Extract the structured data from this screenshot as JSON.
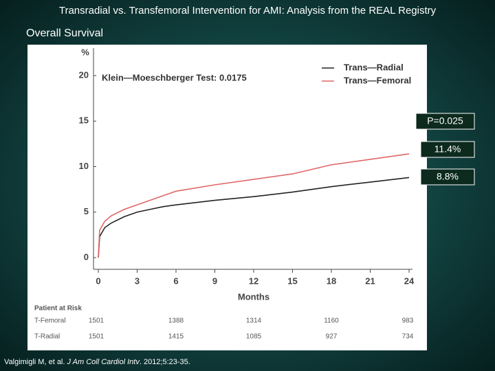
{
  "slide": {
    "title": "Transradial vs. Transfemoral Intervention for AMI: Analysis from the REAL Registry",
    "subtitle": "Overall Survival",
    "citation": [
      "Valgimigli M, et al. ",
      "J Am Coll Cardiol Intv",
      ". 2012;5:23-35."
    ]
  },
  "chart_data": {
    "type": "line",
    "y_label": "%",
    "x_label": "Months",
    "test_label": "Klein—Moeschberger Test: 0.0175",
    "x": [
      0,
      0.1,
      0.5,
      1,
      2,
      3,
      4,
      5,
      6,
      9,
      12,
      15,
      18,
      21,
      24
    ],
    "series": [
      {
        "name": "Trans—Radial",
        "color": "#222222",
        "values": [
          0,
          2.3,
          3.3,
          3.8,
          4.5,
          5.0,
          5.3,
          5.6,
          5.8,
          6.3,
          6.7,
          7.2,
          7.8,
          8.3,
          8.8
        ]
      },
      {
        "name": "Trans—Femoral",
        "color": "#e06666",
        "values": [
          0,
          3.0,
          4.0,
          4.6,
          5.3,
          5.8,
          6.3,
          6.8,
          7.3,
          8.0,
          8.6,
          9.2,
          10.2,
          10.8,
          11.4
        ]
      }
    ],
    "xlim": [
      0,
      24
    ],
    "xticks": [
      0,
      3,
      6,
      9,
      12,
      15,
      18,
      21,
      24
    ],
    "ylim": [
      0,
      20
    ],
    "yticks": [
      0,
      5,
      10,
      15,
      20
    ],
    "annotations": [
      "P=0.025",
      "11.4%",
      "8.8%"
    ],
    "risk_table": {
      "title": "Patient at Risk",
      "rows": [
        {
          "label": "T-Femoral",
          "values": [
            "1501",
            "1388",
            "1314",
            "1160",
            "983"
          ]
        },
        {
          "label": "T-Radial",
          "values": [
            "1501",
            "1415",
            "1085",
            "927",
            "734"
          ]
        }
      ]
    }
  }
}
